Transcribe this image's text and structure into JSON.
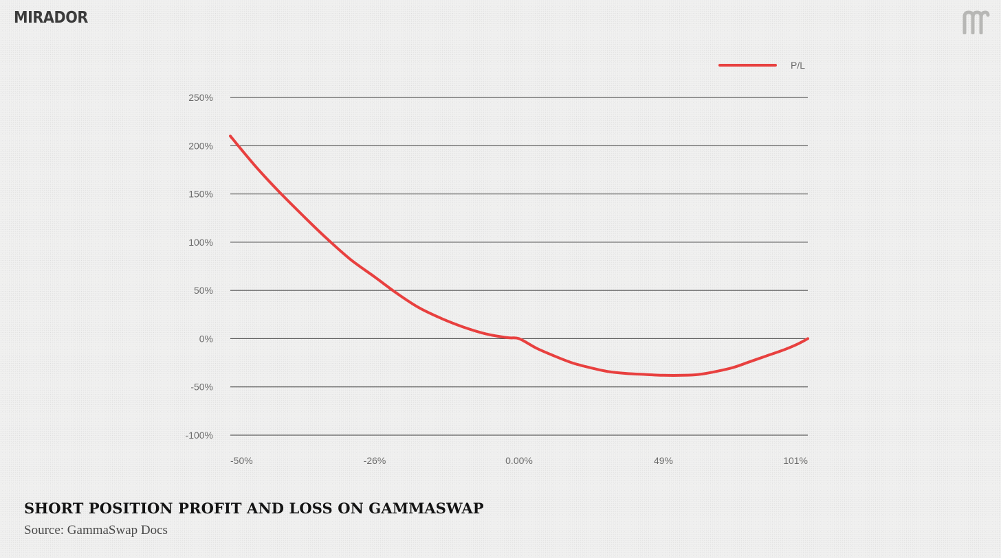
{
  "brand": {
    "name": "MIRADOR"
  },
  "footer": {
    "title": "SHORT POSITION PROFIT AND LOSS ON GAMMASWAP",
    "source": "Source: GammaSwap Docs"
  },
  "colors": {
    "series": "#e8403f",
    "grid": "#3a3a3a",
    "tick_text": "#6b6b6b",
    "brand": "#3b3b3b"
  },
  "chart_data": {
    "type": "line",
    "title": "SHORT POSITION PROFIT AND LOSS ON GAMMASWAP",
    "xlabel": "",
    "ylabel": "",
    "legend_position": "top-right",
    "grid": "horizontal",
    "x_tick_labels": [
      "-50%",
      "-26%",
      "0.00%",
      "49%",
      "101%"
    ],
    "y_tick_labels": [
      "250%",
      "200%",
      "150%",
      "100%",
      "50%",
      "0%",
      "-50%",
      "-100%"
    ],
    "y_ticks": [
      250,
      200,
      150,
      100,
      50,
      0,
      -50,
      -100
    ],
    "ylim": [
      -100,
      250
    ],
    "x_tick_values": [
      -50,
      -26,
      0,
      49,
      101
    ],
    "xlim": [
      -50,
      101
    ],
    "series": [
      {
        "name": "P/L",
        "color": "#e8403f",
        "x": [
          -50,
          -46,
          -42,
          -38,
          -34,
          -30,
          -26,
          -22,
          -18,
          -14,
          -10,
          -6,
          -2,
          0,
          6,
          12,
          18,
          24,
          30,
          36,
          42,
          49,
          56,
          62,
          68,
          74,
          80,
          86,
          92,
          97,
          101
        ],
        "y": [
          210,
          180,
          153,
          128,
          104,
          82,
          64,
          47,
          32,
          21,
          12,
          5,
          1,
          0,
          -10,
          -18,
          -25,
          -30,
          -34,
          -36,
          -37,
          -38,
          -38,
          -37,
          -34,
          -30,
          -24,
          -18,
          -12,
          -6,
          0
        ]
      }
    ]
  }
}
